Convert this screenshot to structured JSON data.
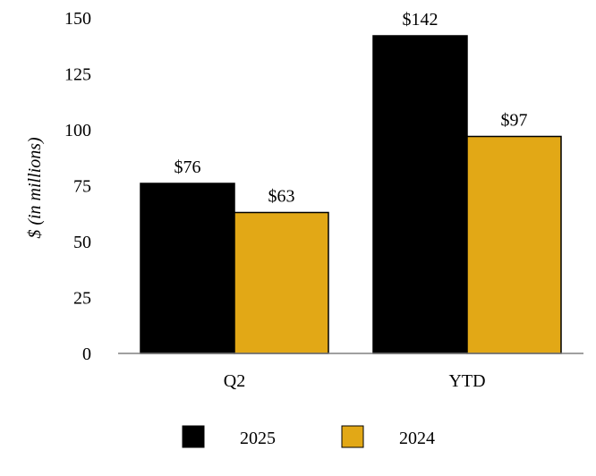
{
  "chart_data": {
    "type": "bar",
    "title": "",
    "xlabel": "",
    "ylabel": "$ (in millions)",
    "categories": [
      "Q2",
      "YTD"
    ],
    "series": [
      {
        "name": "2025",
        "values": [
          76,
          142
        ],
        "labels": [
          "$76",
          "$142"
        ],
        "color": "#000000"
      },
      {
        "name": "2024",
        "values": [
          63,
          97
        ],
        "labels": [
          "$63",
          "$97"
        ],
        "color": "#E2A816"
      }
    ],
    "ylim": [
      0,
      150
    ],
    "yticks": [
      0,
      25,
      50,
      75,
      100,
      125,
      150
    ],
    "grid": false,
    "legend": "bottom"
  }
}
